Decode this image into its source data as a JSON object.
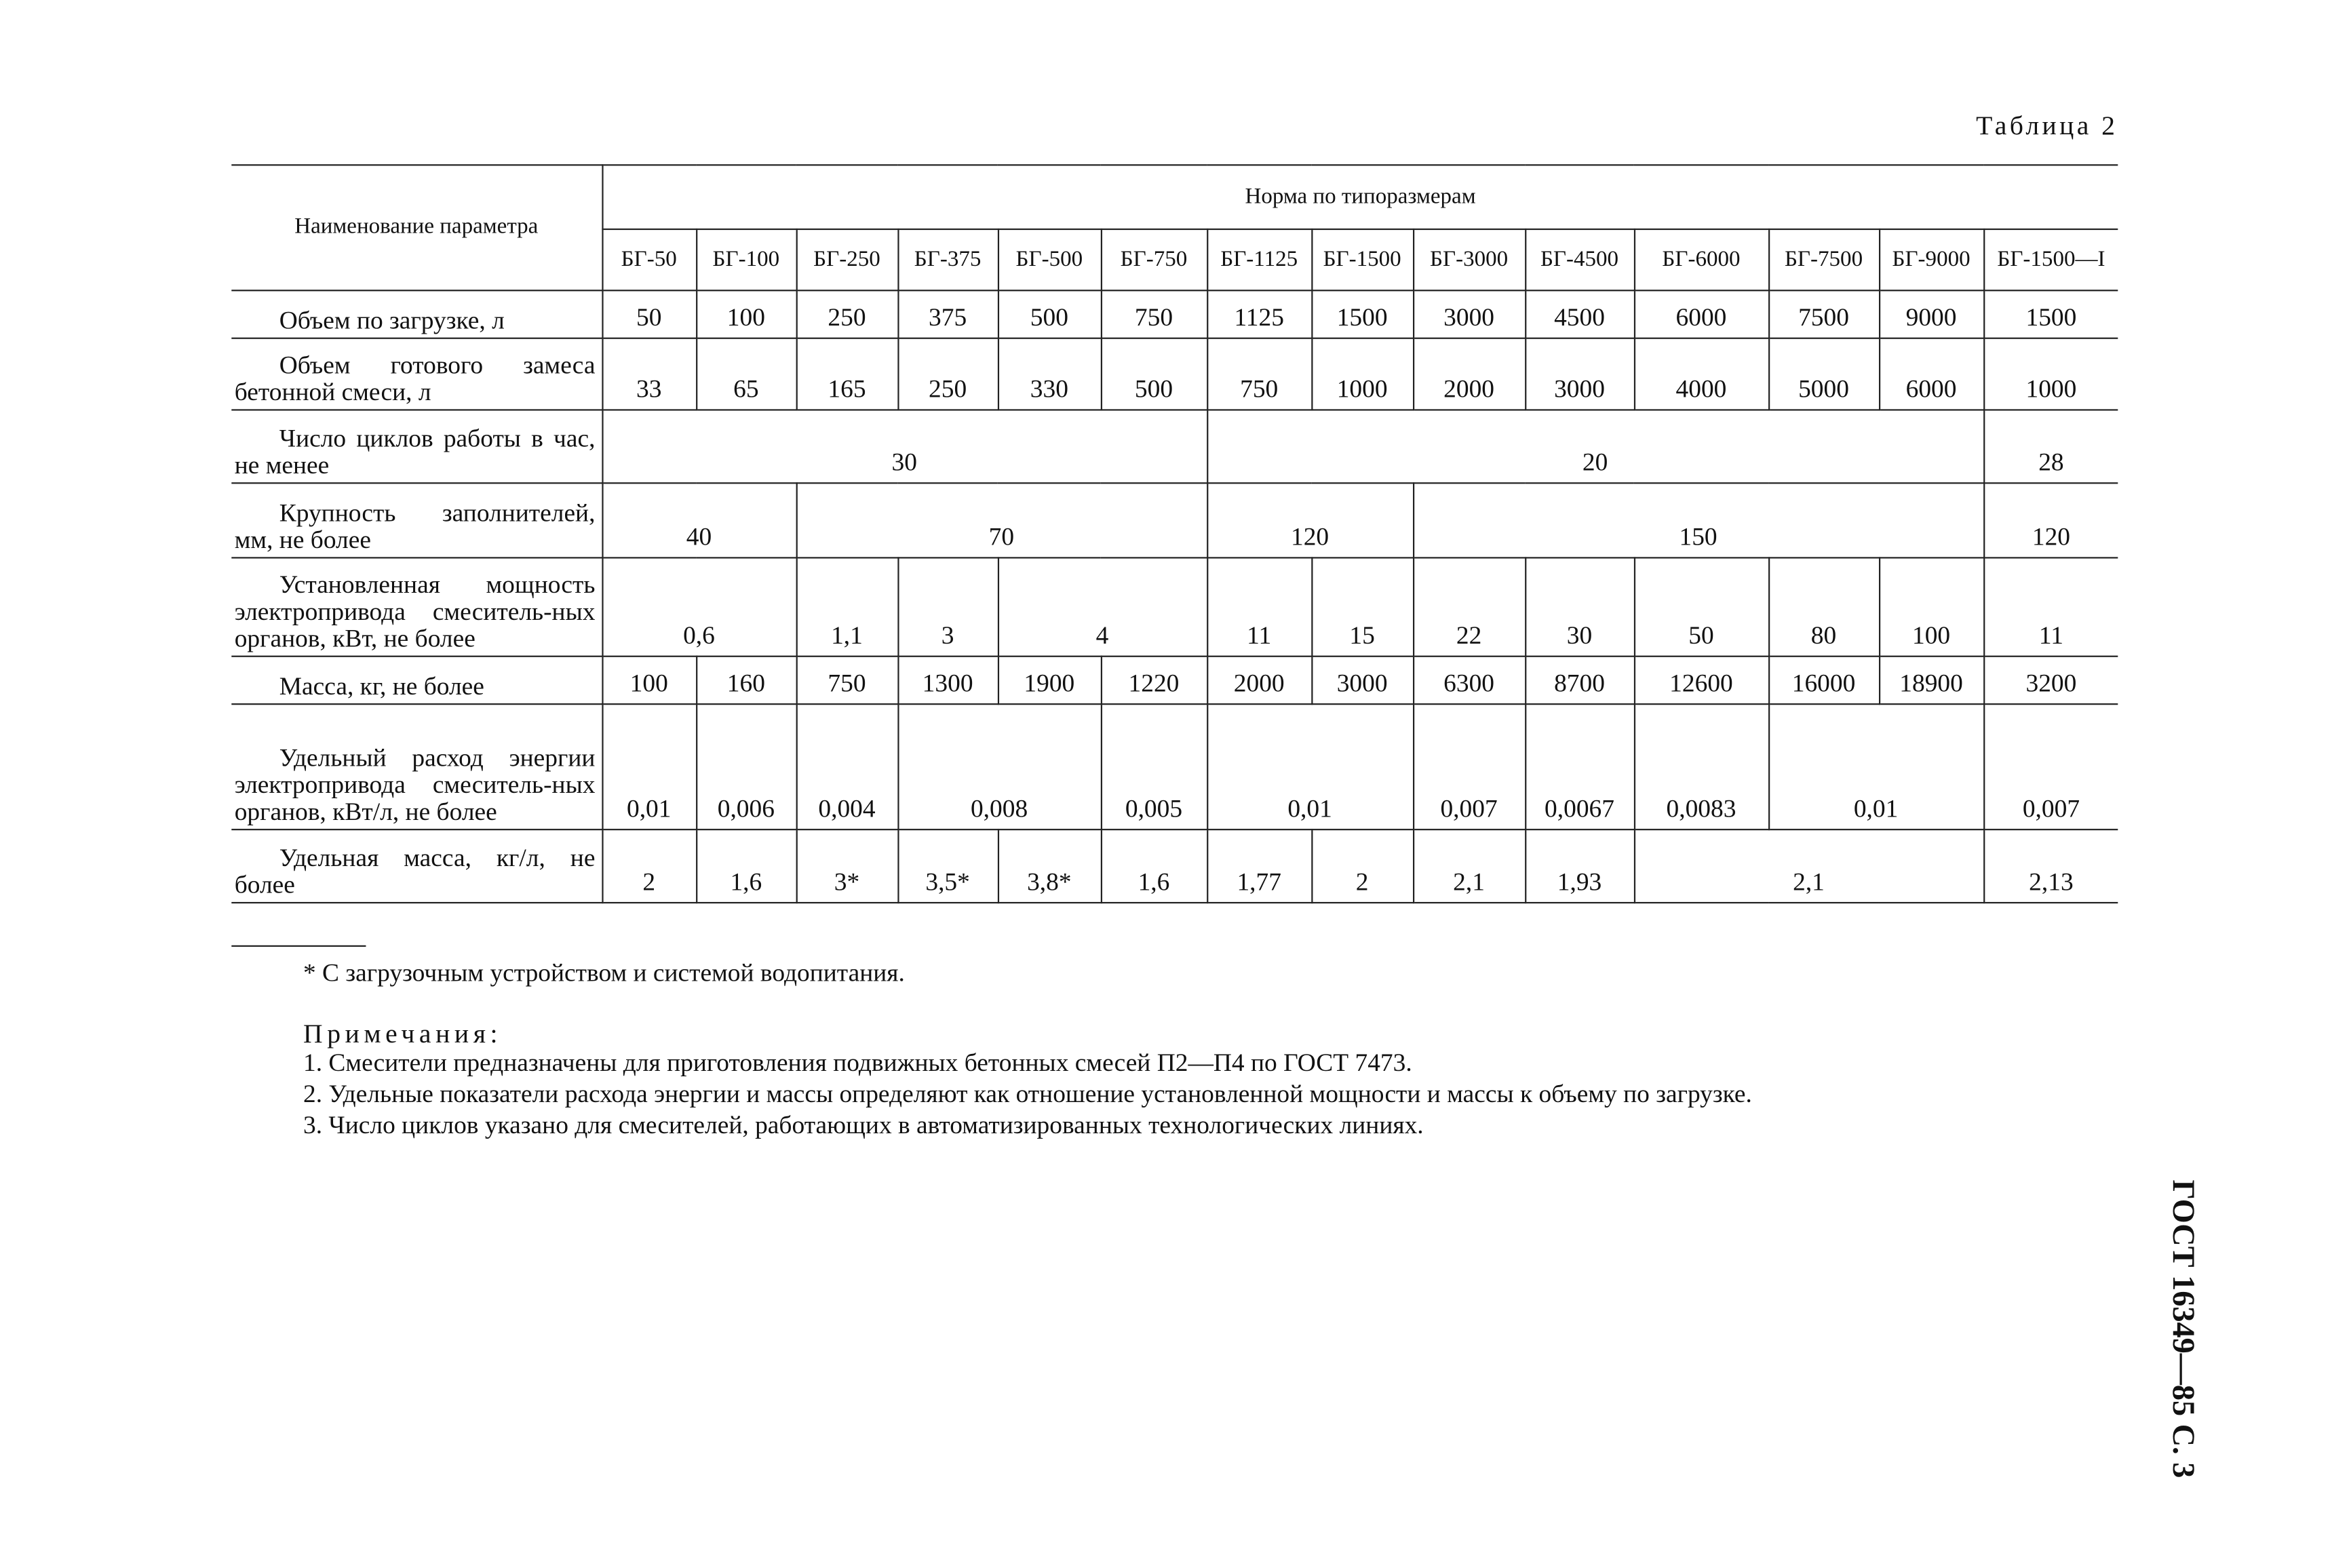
{
  "table_label": "Таблица 2",
  "table": {
    "param_header": "Наименование параметра",
    "norm_header": "Норма по типоразмерам",
    "models": [
      "БГ-50",
      "БГ-100",
      "БГ-250",
      "БГ-375",
      "БГ-500",
      "БГ-750",
      "БГ-1125",
      "БГ-1500",
      "БГ-3000",
      "БГ-4500",
      "БГ-6000",
      "БГ-7500",
      "БГ-9000",
      "БГ-1500—I"
    ],
    "rows": [
      {
        "label": "Объем по загрузке, л",
        "cells": [
          "50",
          "100",
          "250",
          "375",
          "500",
          "750",
          "1125",
          "1500",
          "3000",
          "4500",
          "6000",
          "7500",
          "9000",
          "1500"
        ]
      },
      {
        "label": "Объем готового замеса бетонной смеси, л",
        "cells": [
          "33",
          "65",
          "165",
          "250",
          "330",
          "500",
          "750",
          "1000",
          "2000",
          "3000",
          "4000",
          "5000",
          "6000",
          "1000"
        ]
      },
      {
        "label": "Число циклов работы в час, не менее",
        "cells": [
          "30",
          "20",
          "28"
        ]
      },
      {
        "label": "Крупность заполнителей, мм, не более",
        "cells": [
          "40",
          "70",
          "120",
          "150",
          "120"
        ]
      },
      {
        "label": "Установленная мощность электропривода смеситель-ных органов, кВт, не более",
        "cells": [
          "0,6",
          "1,1",
          "3",
          "4",
          "11",
          "15",
          "22",
          "30",
          "50",
          "80",
          "100",
          "11"
        ]
      },
      {
        "label": "Масса, кг, не более",
        "cells": [
          "100",
          "160",
          "750",
          "1300",
          "1900",
          "1220",
          "2000",
          "3000",
          "6300",
          "8700",
          "12600",
          "16000",
          "18900",
          "3200"
        ]
      },
      {
        "label": "Удельный расход энергии электропривода смеситель-ных органов, кВт/л, не более",
        "cells": [
          "0,01",
          "0,006",
          "0,004",
          "0,008",
          "0,005",
          "0,01",
          "0,007",
          "0,0067",
          "0,0083",
          "0,01",
          "0,007"
        ]
      },
      {
        "label": "Удельная масса, кг/л, не более",
        "cells": [
          "2",
          "1,6",
          "3*",
          "3,5*",
          "3,8*",
          "1,6",
          "1,77",
          "2",
          "2,1",
          "1,93",
          "2,1",
          "2,13"
        ]
      }
    ]
  },
  "footnote": "* С загрузочным устройством и системой водопитания.",
  "notes": {
    "title": "Примечания:",
    "items": [
      "1. Смесители предназначены для приготовления подвижных бетонных смесей П2—П4 по ГОСТ 7473.",
      "2. Удельные показатели расхода энергии и массы определяют как отношение установленной мощности и массы к объему по загрузке.",
      "3. Число циклов указано для смесителей, работающих в автоматизированных технологических линиях."
    ]
  },
  "side_header": "ГОСТ 16349—85 С. 3"
}
